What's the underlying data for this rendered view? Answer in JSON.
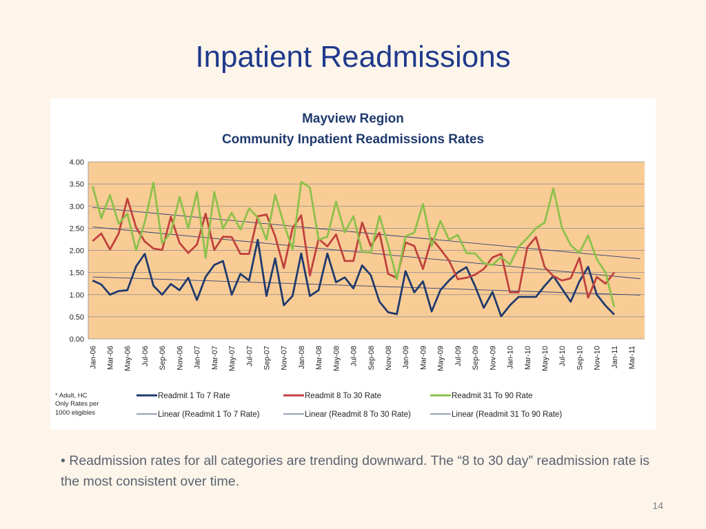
{
  "slide": {
    "title": "Inpatient Readmissions",
    "bullet_marker": "•",
    "bullet_text": "Readmission rates for all categories are trending downward. The “8 to 30 day” readmission rate is the most consistent over time.",
    "page_number": "14"
  },
  "colors": {
    "plot_background": "#f9cc96",
    "grid": "#8a8a8a",
    "title": "#1f3a6e",
    "trend_line": "#2b3d73"
  },
  "chart_data": {
    "type": "line",
    "title": "Mayview Region",
    "subtitle": "Community Inpatient Readmissions Rates",
    "note": [
      "* Adult, HC",
      "Only Rates per",
      "1000 eligibles"
    ],
    "ylim": [
      0,
      4
    ],
    "yticks": [
      "0.00",
      "0.50",
      "1.00",
      "1.50",
      "2.00",
      "2.50",
      "3.00",
      "3.50",
      "4.00"
    ],
    "x_count": 64,
    "xtick_labels": [
      "Jan-06",
      "Mar-06",
      "May-06",
      "Jul-06",
      "Sep-06",
      "Nov-06",
      "Jan-07",
      "Mar-07",
      "May-07",
      "Jul-07",
      "Sep-07",
      "Nov-07",
      "Jan-08",
      "Mar-08",
      "May-08",
      "Jul-08",
      "Sep-08",
      "Nov-08",
      "Jan-09",
      "Mar-09",
      "May-09",
      "Jul-09",
      "Sep-09",
      "Nov-09",
      "Jan-10",
      "Mar-10",
      "May-10",
      "Jul-10",
      "Sep-10",
      "Nov-10",
      "Jan-11",
      "Mar-11"
    ],
    "grid": true,
    "legend_position": "bottom",
    "series": [
      {
        "name": "Readmit 1 To 7 Rate",
        "color": "#1f3a6e",
        "values": [
          1.32,
          1.23,
          1.0,
          1.08,
          1.1,
          1.64,
          1.92,
          1.2,
          1.0,
          1.24,
          1.1,
          1.38,
          0.88,
          1.4,
          1.67,
          1.76,
          1.0,
          1.47,
          1.32,
          2.24,
          0.97,
          1.82,
          0.76,
          0.97,
          1.93,
          0.97,
          1.1,
          1.93,
          1.28,
          1.39,
          1.14,
          1.66,
          1.44,
          0.84,
          0.6,
          0.56,
          1.53,
          1.05,
          1.3,
          0.62,
          1.1,
          1.32,
          1.5,
          1.62,
          1.19,
          0.7,
          1.06,
          0.51,
          0.76,
          0.95,
          0.95,
          0.95,
          1.2,
          1.42,
          1.13,
          0.84,
          1.3,
          1.63,
          1.0,
          0.75,
          0.55
        ]
      },
      {
        "name": "Readmit 8 To 30 Rate",
        "color": "#c0413c",
        "values": [
          2.21,
          2.38,
          2.02,
          2.38,
          3.17,
          2.52,
          2.2,
          2.04,
          2.01,
          2.76,
          2.17,
          1.94,
          2.13,
          2.83,
          2.01,
          2.31,
          2.3,
          1.92,
          1.92,
          2.77,
          2.81,
          2.32,
          1.6,
          2.5,
          2.79,
          1.43,
          2.26,
          2.09,
          2.36,
          1.76,
          1.76,
          2.63,
          2.1,
          2.4,
          1.47,
          1.38,
          2.18,
          2.1,
          1.58,
          2.27,
          2.03,
          1.77,
          1.35,
          1.38,
          1.45,
          1.58,
          1.84,
          1.92,
          1.05,
          1.05,
          2.07,
          2.3,
          1.62,
          1.42,
          1.32,
          1.37,
          1.83,
          0.93,
          1.4,
          1.25,
          1.5
        ]
      },
      {
        "name": "Readmit 31 To 90 Rate",
        "color": "#8dc04b",
        "values": [
          3.45,
          2.73,
          3.25,
          2.6,
          2.83,
          2.0,
          2.64,
          3.53,
          2.16,
          2.4,
          3.21,
          2.5,
          3.32,
          1.83,
          3.32,
          2.49,
          2.85,
          2.47,
          2.95,
          2.74,
          2.24,
          3.26,
          2.6,
          2.02,
          3.55,
          3.42,
          2.24,
          2.31,
          3.1,
          2.41,
          2.77,
          1.97,
          1.95,
          2.78,
          2.12,
          1.35,
          2.32,
          2.4,
          3.05,
          2.1,
          2.67,
          2.24,
          2.35,
          1.94,
          1.93,
          1.71,
          1.67,
          1.85,
          1.68,
          2.08,
          2.28,
          2.5,
          2.63,
          3.4,
          2.5,
          2.12,
          1.94,
          2.34,
          1.8,
          1.5,
          0.72
        ]
      }
    ],
    "trend_lines": [
      {
        "name": "Linear (Readmit 1 To 7 Rate)",
        "start": 1.4,
        "end": 0.99
      },
      {
        "name": "Linear (Readmit 8 To 30 Rate)",
        "start": 2.53,
        "end": 1.36
      },
      {
        "name": "Linear (Readmit 31 To 90 Rate)",
        "start": 2.97,
        "end": 1.81
      }
    ]
  }
}
